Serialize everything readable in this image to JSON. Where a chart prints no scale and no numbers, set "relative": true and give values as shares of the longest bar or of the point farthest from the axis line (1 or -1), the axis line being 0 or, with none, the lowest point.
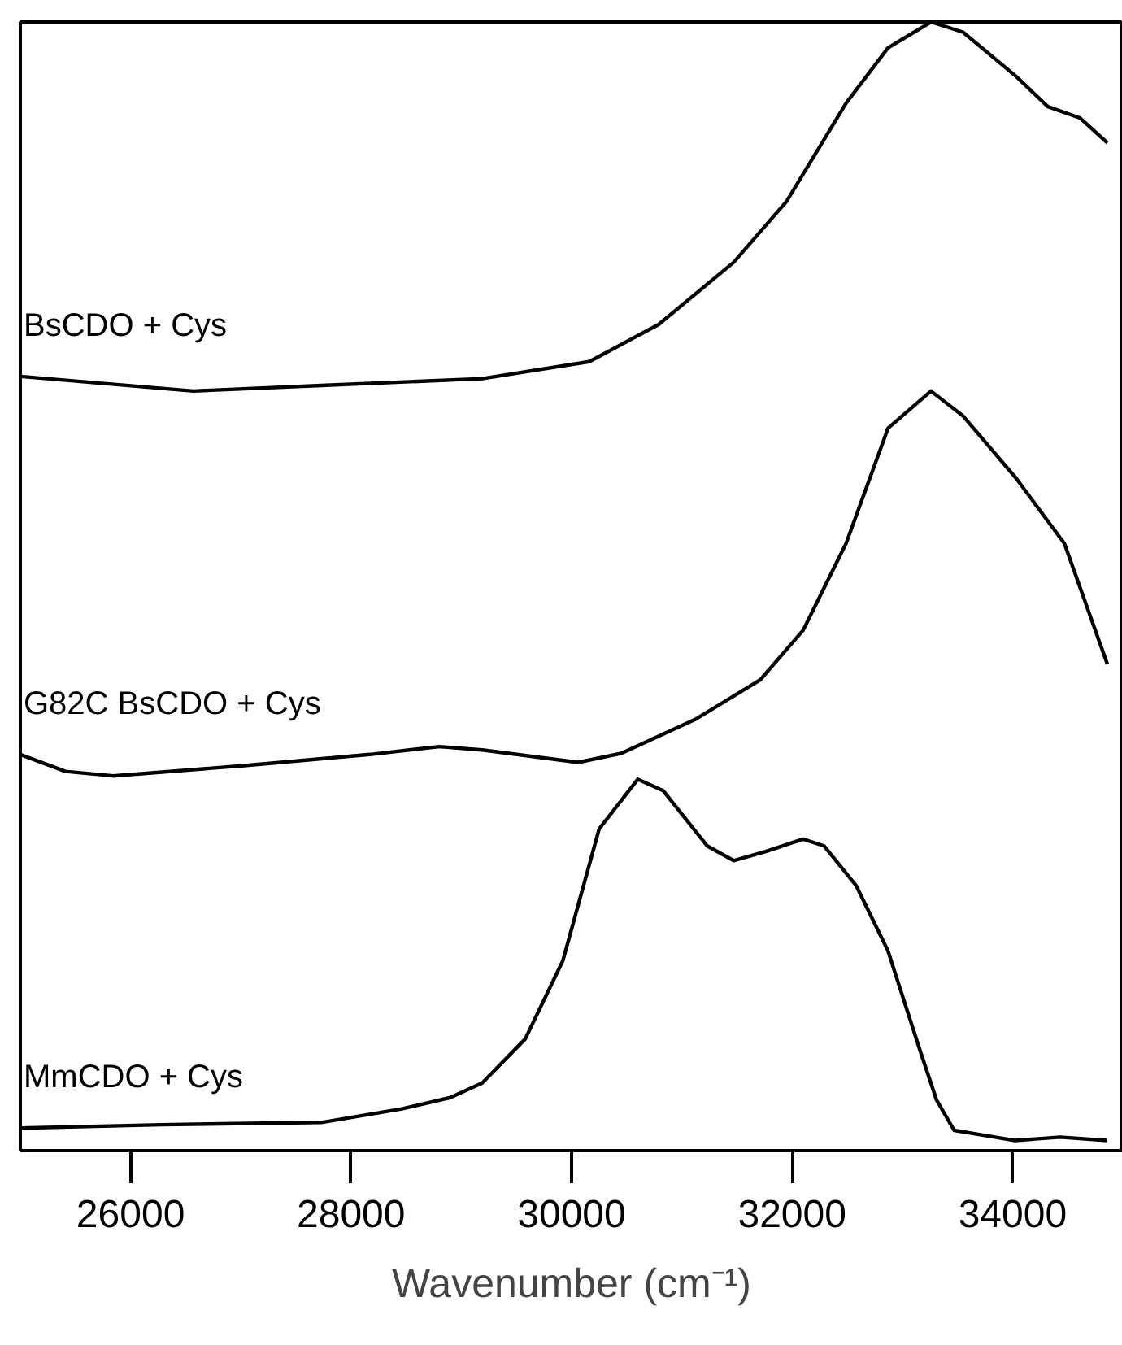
{
  "chart_data": {
    "type": "line",
    "relative": true,
    "xlabel": "Wavenumber (cm⁻¹)",
    "xlim": [
      25000,
      35000
    ],
    "xticks": [
      26000,
      28000,
      30000,
      32000,
      34000
    ],
    "tick_labels": "x",
    "grid": false,
    "legend": false,
    "marker": "none",
    "line_style": "solid",
    "series": [
      {
        "name": "BsCDO + Cys",
        "color": "#000000",
        "x": [
          25000,
          26570,
          27730,
          29190,
          30160,
          30790,
          31470,
          31950,
          32490,
          32870,
          33260,
          33550,
          34030,
          34320,
          34610,
          34860
        ],
        "values": [
          0.686,
          0.673,
          0.678,
          0.684,
          0.699,
          0.732,
          0.787,
          0.841,
          0.928,
          0.977,
          1.0,
          0.991,
          0.952,
          0.925,
          0.915,
          0.893
        ]
      },
      {
        "name": "G82C BsCDO + Cys",
        "color": "#000000",
        "x": [
          25000,
          25410,
          25840,
          27010,
          28170,
          28800,
          29190,
          30060,
          30450,
          31120,
          31710,
          32100,
          32490,
          32870,
          33260,
          33550,
          34030,
          34470,
          34860
        ],
        "values": [
          0.351,
          0.336,
          0.332,
          0.341,
          0.351,
          0.358,
          0.355,
          0.344,
          0.352,
          0.382,
          0.417,
          0.461,
          0.538,
          0.64,
          0.673,
          0.651,
          0.596,
          0.538,
          0.431
        ]
      },
      {
        "name": "MmCDO + Cys",
        "color": "#000000",
        "x": [
          25000,
          26280,
          27730,
          28460,
          28900,
          29190,
          29580,
          29920,
          30250,
          30600,
          30830,
          31230,
          31470,
          31760,
          32100,
          32290,
          32580,
          32870,
          33160,
          33310,
          33470,
          33840,
          34020,
          34430,
          34860
        ],
        "values": [
          0.02,
          0.023,
          0.025,
          0.037,
          0.047,
          0.06,
          0.099,
          0.168,
          0.285,
          0.329,
          0.319,
          0.27,
          0.257,
          0.265,
          0.276,
          0.27,
          0.235,
          0.177,
          0.089,
          0.045,
          0.018,
          0.012,
          0.009,
          0.012,
          0.009
        ]
      }
    ]
  }
}
